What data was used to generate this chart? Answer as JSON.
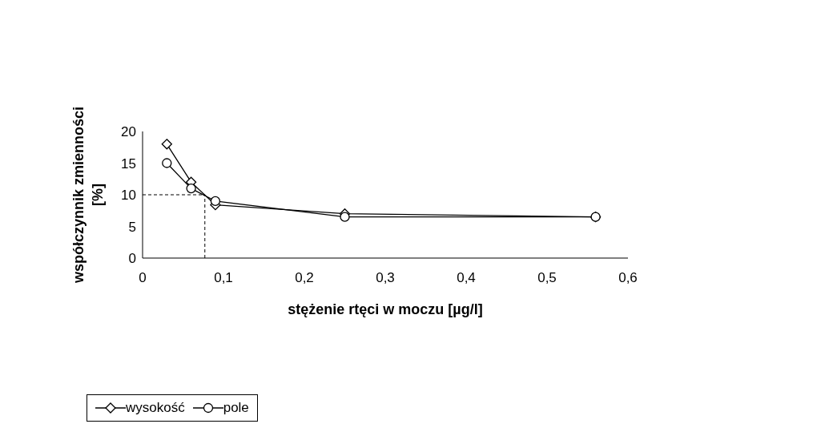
{
  "chart_data": {
    "type": "line",
    "xlabel": "stężenie rtęci w moczu [µg/l]",
    "ylabel": "współczynnik zmienności [%]",
    "series": [
      {
        "name": "wysokość",
        "color": "#000000",
        "marker": "diamond",
        "x": [
          0.03,
          0.06,
          0.09,
          0.25,
          0.56
        ],
        "values": [
          18,
          12,
          8.4,
          7.0,
          6.5
        ]
      },
      {
        "name": "pole",
        "color": "#000000",
        "marker": "circle",
        "x": [
          0.03,
          0.06,
          0.09,
          0.25,
          0.56
        ],
        "values": [
          15,
          11,
          9,
          6.5,
          6.5
        ]
      }
    ],
    "xlim": [
      0,
      0.6
    ],
    "xticks": [
      0,
      {
        "value": 0.1,
        "label": "0,1"
      },
      {
        "value": 0.2,
        "label": "0,2"
      },
      {
        "value": 0.3,
        "label": "0,3"
      },
      {
        "value": 0.4,
        "label": "0,4"
      },
      {
        "value": 0.5,
        "label": "0,5"
      },
      {
        "value": 0.6,
        "label": "0,6"
      }
    ],
    "ylim": [
      0,
      20
    ],
    "yticks": [
      0,
      5,
      10,
      15,
      20
    ],
    "ref_lines": [
      {
        "axis": "y",
        "value": 10,
        "line_style": "dashed",
        "color": "#000000"
      },
      {
        "axis": "x",
        "value": 0.077,
        "line_style": "dashed",
        "color": "#000000"
      }
    ],
    "grid": false,
    "legend": "bottom",
    "line_style": "solid"
  }
}
